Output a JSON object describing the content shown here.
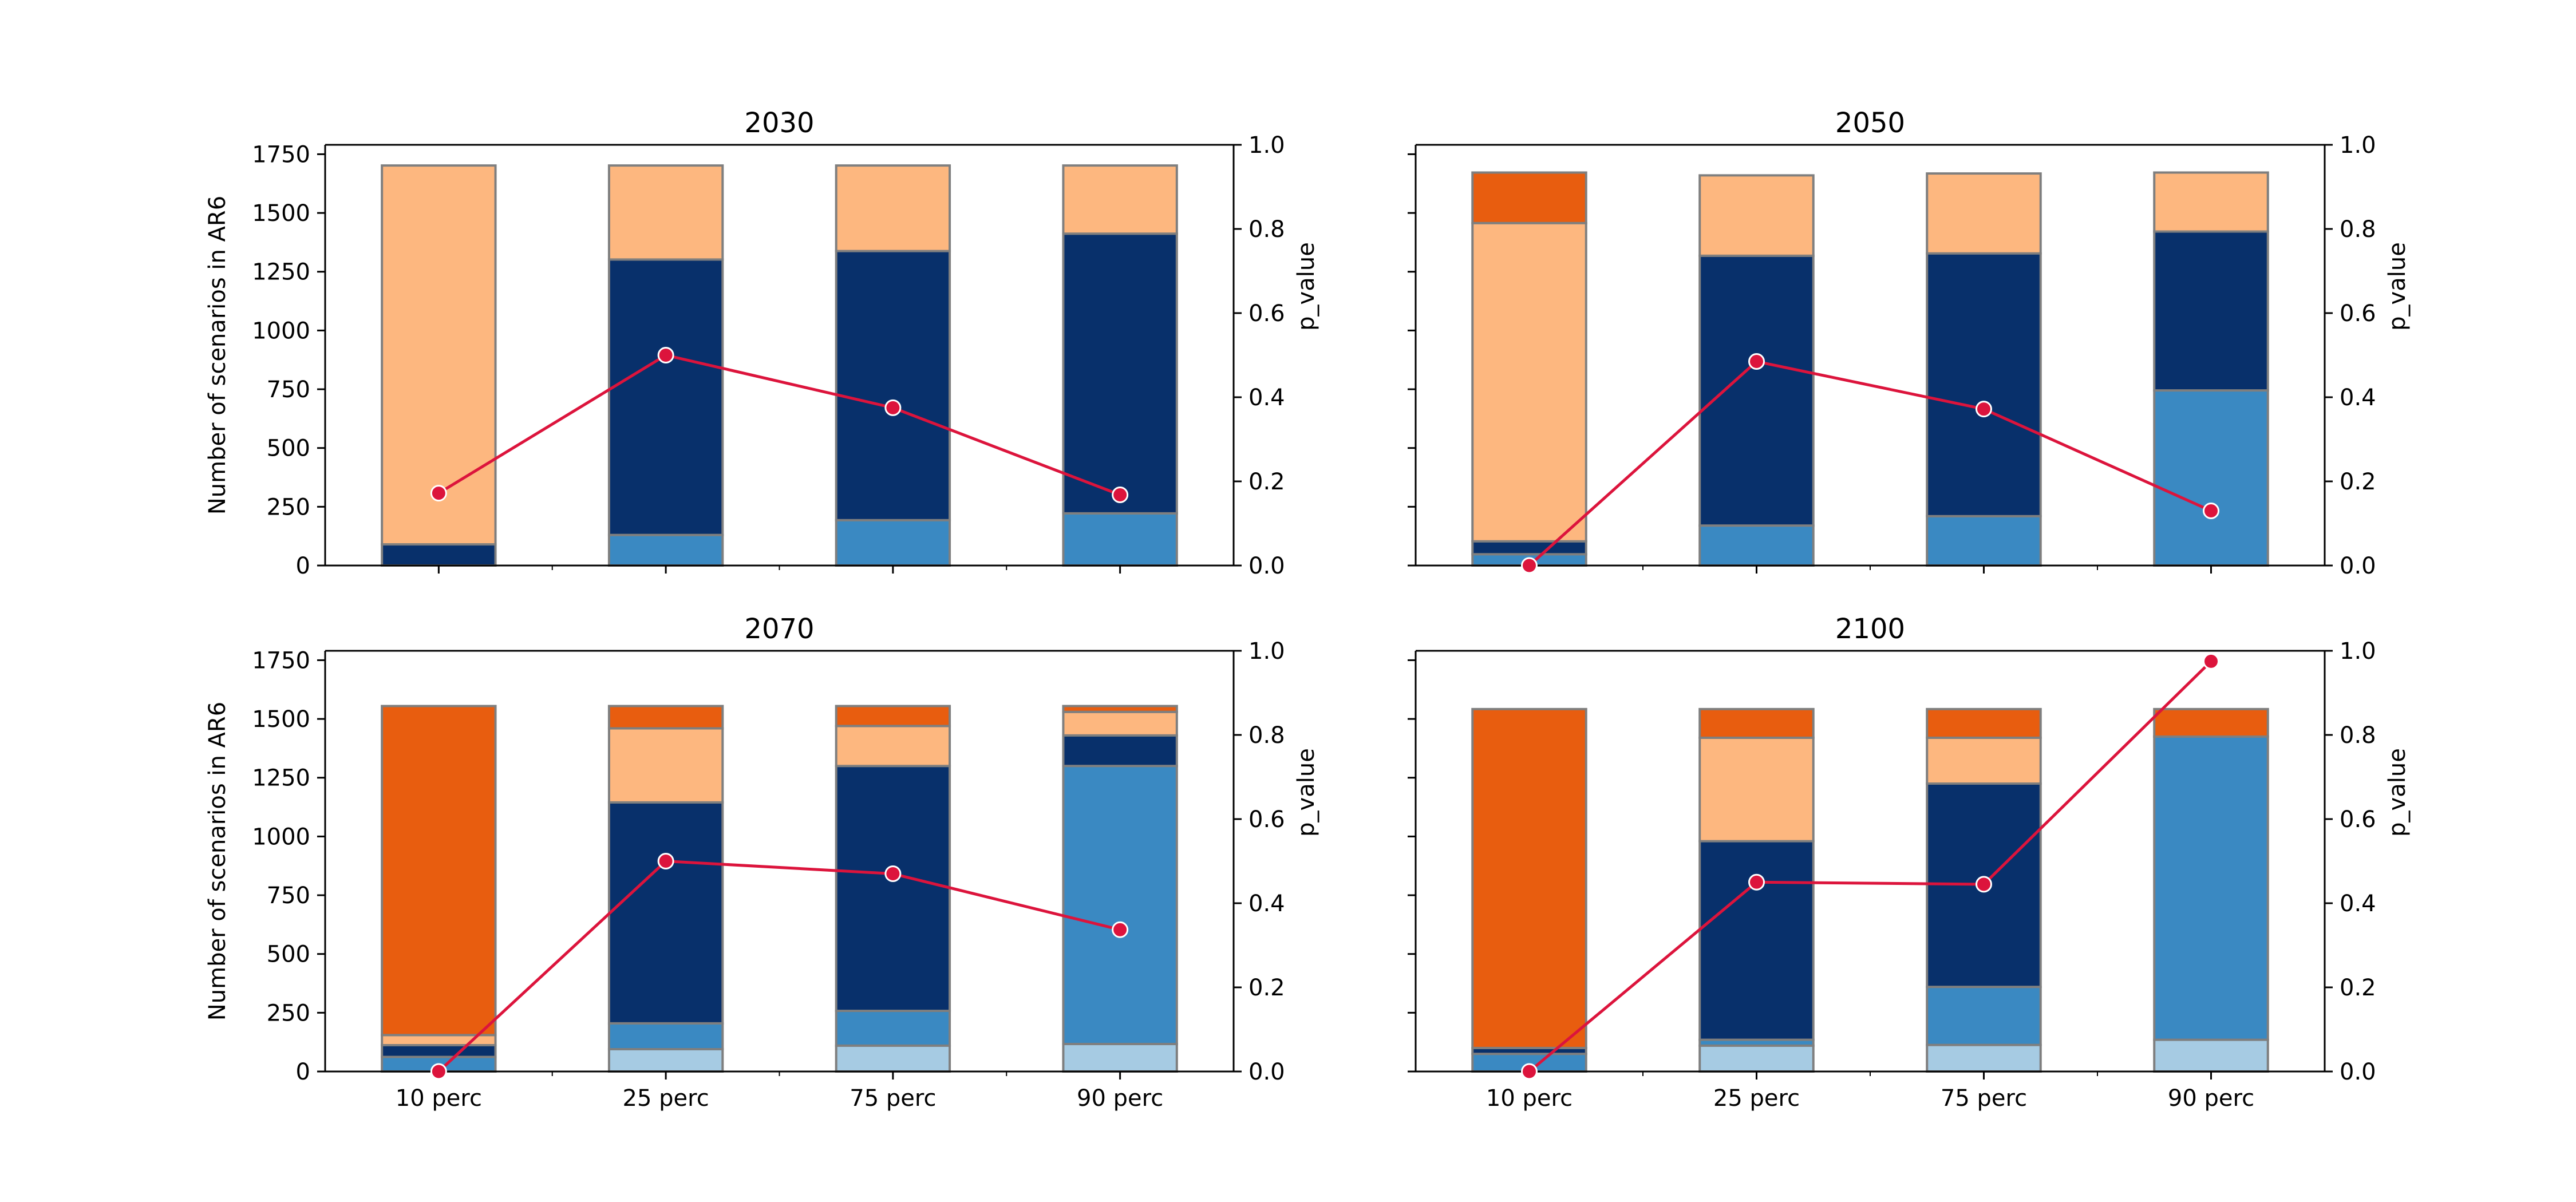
{
  "colors": {
    "seg0": "#a6cbe3",
    "seg1": "#3a89c2",
    "seg2": "#08306b",
    "seg3": "#fdb77f",
    "seg4": "#e85d0f",
    "bar_edge": "#7f7f7f",
    "line": "#dc143c",
    "marker_edge": "#ffffff"
  },
  "chart_data": [
    {
      "type": "bar",
      "stacked": true,
      "title": "2030",
      "ylabel": "Number of scenarios in AR6",
      "y2label": "p_value",
      "categories": [
        "10 perc",
        "25 perc",
        "75 perc",
        "90 perc"
      ],
      "ylim": [
        0,
        1790
      ],
      "y2lim": [
        0,
        1.0
      ],
      "yticks": [
        "0",
        "250",
        "500",
        "750",
        "1000",
        "1250",
        "1500",
        "1750"
      ],
      "y2ticks": [
        "0.0",
        "0.2",
        "0.4",
        "0.6",
        "0.8",
        "1.0"
      ],
      "show_xticklabels": false,
      "show_ylabels": true,
      "segments": [
        [
          0,
          0,
          90,
          1612,
          0
        ],
        [
          0,
          130,
          1172,
          400,
          0
        ],
        [
          0,
          193,
          1145,
          364,
          0
        ],
        [
          0,
          222,
          1190,
          290,
          0
        ]
      ],
      "p_value": [
        0.172,
        0.5,
        0.375,
        0.168
      ]
    },
    {
      "type": "bar",
      "stacked": true,
      "title": "2050",
      "ylabel": "",
      "y2label": "p_value",
      "categories": [
        "10 perc",
        "25 perc",
        "75 perc",
        "90 perc"
      ],
      "ylim": [
        0,
        1790
      ],
      "y2lim": [
        0,
        1.0
      ],
      "yticks": [],
      "y2ticks": [
        "0.0",
        "0.2",
        "0.4",
        "0.6",
        "0.8",
        "1.0"
      ],
      "show_xticklabels": false,
      "show_ylabels": false,
      "segments": [
        [
          0,
          48,
          55,
          1354,
          215
        ],
        [
          0,
          170,
          1148,
          342,
          0
        ],
        [
          0,
          210,
          1118,
          340,
          0
        ],
        [
          0,
          745,
          676,
          251,
          0
        ]
      ],
      "p_value": [
        0.0,
        0.485,
        0.372,
        0.13
      ]
    },
    {
      "type": "bar",
      "stacked": true,
      "title": "2070",
      "ylabel": "Number of scenarios in AR6",
      "y2label": "p_value",
      "categories": [
        "10 perc",
        "25 perc",
        "75 perc",
        "90 perc"
      ],
      "ylim": [
        0,
        1790
      ],
      "y2lim": [
        0,
        1.0
      ],
      "yticks": [
        "0",
        "250",
        "500",
        "750",
        "1000",
        "1250",
        "1500",
        "1750"
      ],
      "y2ticks": [
        "0.0",
        "0.2",
        "0.4",
        "0.6",
        "0.8",
        "1.0"
      ],
      "show_xticklabels": true,
      "show_ylabels": true,
      "segments": [
        [
          0,
          62,
          50,
          43,
          1400
        ],
        [
          95,
          110,
          940,
          315,
          95
        ],
        [
          110,
          148,
          1042,
          170,
          85
        ],
        [
          117,
          1183,
          130,
          100,
          25
        ]
      ],
      "p_value": [
        0.0,
        0.5,
        0.47,
        0.337
      ]
    },
    {
      "type": "bar",
      "stacked": true,
      "title": "2100",
      "ylabel": "",
      "y2label": "p_value",
      "categories": [
        "10 perc",
        "25 perc",
        "75 perc",
        "90 perc"
      ],
      "ylim": [
        0,
        1790
      ],
      "y2lim": [
        0,
        1.0
      ],
      "yticks": [],
      "y2ticks": [
        "0.0",
        "0.2",
        "0.4",
        "0.6",
        "0.8",
        "1.0"
      ],
      "show_xticklabels": true,
      "show_ylabels": false,
      "segments": [
        [
          0,
          75,
          25,
          0,
          1442
        ],
        [
          110,
          25,
          845,
          440,
          122
        ],
        [
          113,
          247,
          865,
          195,
          122
        ],
        [
          135,
          1290,
          0,
          0,
          117
        ]
      ],
      "p_value": [
        0.0,
        0.45,
        0.445,
        0.975
      ]
    }
  ]
}
